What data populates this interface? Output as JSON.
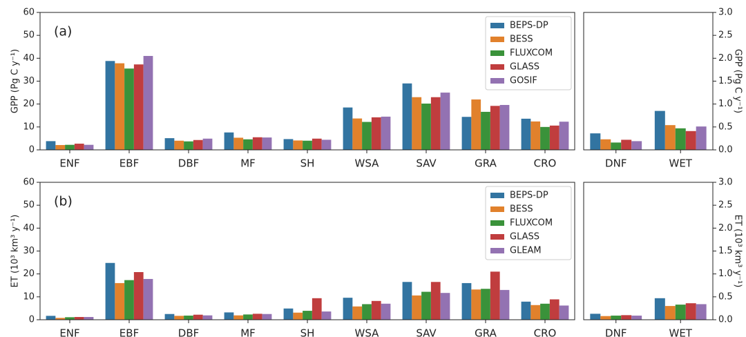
{
  "chart_data": [
    {
      "type": "bar",
      "annotation": "(a)",
      "ylabel": "GPP (Pg C y⁻¹)",
      "legend": "upper right",
      "categories": [
        "ENF",
        "EBF",
        "DBF",
        "MF",
        "SH",
        "WSA",
        "SAV",
        "GRA",
        "CRO"
      ],
      "ylim": [
        0,
        60
      ],
      "yticks": [
        0,
        10,
        20,
        30,
        40,
        50,
        60
      ],
      "series": [
        {
          "name": "BEPS-DP",
          "color": "#3274a1",
          "values": [
            3.8,
            38.8,
            5.1,
            7.6,
            4.7,
            18.5,
            29.0,
            14.4,
            13.6
          ]
        },
        {
          "name": "BESS",
          "color": "#e1812c",
          "values": [
            2.1,
            37.8,
            4.0,
            5.3,
            4.1,
            13.7,
            23.0,
            22.0,
            12.4
          ]
        },
        {
          "name": "FLUXCOM",
          "color": "#3a923a",
          "values": [
            2.2,
            35.5,
            3.7,
            4.6,
            4.0,
            12.2,
            20.2,
            16.6,
            10.0
          ]
        },
        {
          "name": "GLASS",
          "color": "#c03d3e",
          "values": [
            2.7,
            37.3,
            4.3,
            5.5,
            4.9,
            14.2,
            23.0,
            19.2,
            10.6
          ]
        },
        {
          "name": "GOSIF",
          "color": "#9372b2",
          "values": [
            2.2,
            41.0,
            4.9,
            5.4,
            4.4,
            14.5,
            25.0,
            19.6,
            12.3
          ]
        }
      ]
    },
    {
      "type": "bar",
      "ylabel": "GPP (Pg C y⁻¹)",
      "categories": [
        "DNF",
        "WET"
      ],
      "ylim": [
        0,
        3
      ],
      "yticks": [
        {
          "value": 0,
          "label": "0.0"
        },
        0.5,
        {
          "value": 1,
          "label": "1.0"
        },
        1.5,
        {
          "value": 2,
          "label": "2.0"
        },
        2.5,
        {
          "value": 3,
          "label": "3.0"
        }
      ],
      "series": [
        {
          "color": "#3274a1",
          "values": [
            0.36,
            0.85
          ]
        },
        {
          "color": "#e1812c",
          "values": [
            0.23,
            0.54
          ]
        },
        {
          "color": "#3a923a",
          "values": [
            0.16,
            0.47
          ]
        },
        {
          "color": "#c03d3e",
          "values": [
            0.22,
            0.41
          ]
        },
        {
          "color": "#9372b2",
          "values": [
            0.19,
            0.51
          ]
        }
      ]
    },
    {
      "type": "bar",
      "annotation": "(b)",
      "ylabel": "ET (10³ km³ y⁻¹)",
      "legend": "upper right",
      "categories": [
        "ENF",
        "EBF",
        "DBF",
        "MF",
        "SH",
        "WSA",
        "SAV",
        "GRA",
        "CRO"
      ],
      "ylim": [
        0,
        60
      ],
      "yticks": [
        0,
        10,
        20,
        30,
        40,
        50,
        60
      ],
      "series": [
        {
          "name": "BEPS-DP",
          "color": "#3274a1",
          "values": [
            1.7,
            24.8,
            2.5,
            3.2,
            4.9,
            9.6,
            16.5,
            16.0,
            7.9
          ]
        },
        {
          "name": "BESS",
          "color": "#e1812c",
          "values": [
            0.8,
            16.0,
            1.7,
            1.9,
            3.1,
            5.8,
            10.6,
            13.2,
            6.4
          ]
        },
        {
          "name": "FLUXCOM",
          "color": "#3a923a",
          "values": [
            1.1,
            17.3,
            1.8,
            2.3,
            3.9,
            6.8,
            12.2,
            13.5,
            7.0
          ]
        },
        {
          "name": "GLASS",
          "color": "#c03d3e",
          "values": [
            1.2,
            20.8,
            2.2,
            2.6,
            9.4,
            8.2,
            16.5,
            21.0,
            8.9
          ]
        },
        {
          "name": "GLEAM",
          "color": "#9372b2",
          "values": [
            1.2,
            17.8,
            1.9,
            2.5,
            3.6,
            7.0,
            11.7,
            13.0,
            6.2
          ]
        }
      ]
    },
    {
      "type": "bar",
      "ylabel": "ET (10³ km³ y⁻¹)",
      "categories": [
        "DNF",
        "WET"
      ],
      "ylim": [
        0,
        3
      ],
      "yticks": [
        {
          "value": 0,
          "label": "0.0"
        },
        0.5,
        {
          "value": 1,
          "label": "1.0"
        },
        1.5,
        {
          "value": 2,
          "label": "2.0"
        },
        2.5,
        {
          "value": 3,
          "label": "3.0"
        }
      ],
      "series": [
        {
          "color": "#3274a1",
          "values": [
            0.13,
            0.47
          ]
        },
        {
          "color": "#e1812c",
          "values": [
            0.08,
            0.3
          ]
        },
        {
          "color": "#3a923a",
          "values": [
            0.09,
            0.33
          ]
        },
        {
          "color": "#c03d3e",
          "values": [
            0.1,
            0.36
          ]
        },
        {
          "color": "#9372b2",
          "values": [
            0.09,
            0.34
          ]
        }
      ]
    }
  ]
}
